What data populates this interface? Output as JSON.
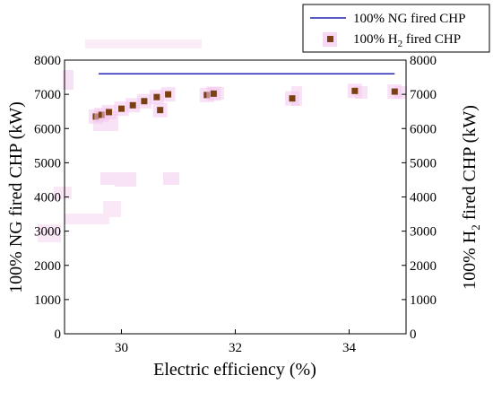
{
  "chart_data": {
    "type": "scatter",
    "title": "",
    "xlabel": "Electric efficiency (%)",
    "ylabel_left": "100% NG fired CHP (kW)",
    "ylabel_right_parts": [
      "100% H",
      "2",
      " fired CHP (kW)"
    ],
    "xlim": [
      29,
      35
    ],
    "ylim": [
      0,
      8000
    ],
    "x_ticks": [
      30,
      32,
      34
    ],
    "y_ticks": [
      0,
      1000,
      2000,
      3000,
      4000,
      5000,
      6000,
      7000,
      8000
    ],
    "grid": false,
    "legend_position": "top-right",
    "series": [
      {
        "name": "100% NG fired CHP",
        "kind": "line",
        "color": "#2323b4",
        "x": [
          29.6,
          34.8
        ],
        "y": [
          7600,
          7600
        ]
      },
      {
        "name_parts": [
          "100% H",
          "2",
          " fired CHP"
        ],
        "kind": "scatter",
        "color": "#7b3f12",
        "x": [
          29.55,
          29.65,
          29.78,
          30.0,
          30.2,
          30.4,
          30.62,
          30.68,
          30.82,
          31.5,
          31.62,
          33.0,
          34.1,
          34.8
        ],
        "y": [
          6350,
          6400,
          6480,
          6580,
          6680,
          6800,
          6920,
          6540,
          7000,
          6980,
          7020,
          6880,
          7100,
          7080
        ]
      }
    ]
  }
}
